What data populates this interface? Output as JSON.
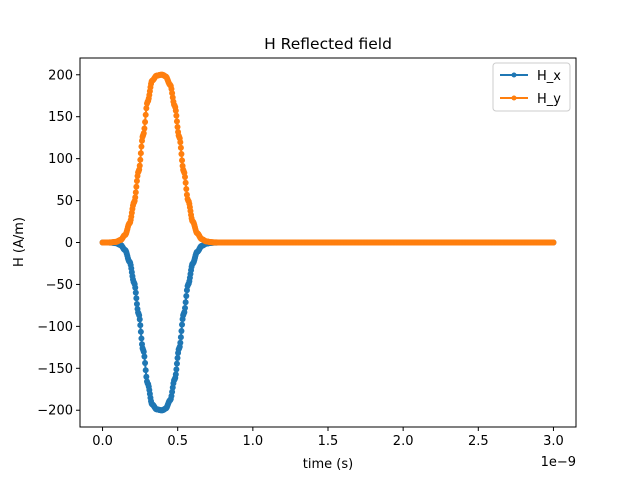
{
  "chart_data": {
    "type": "line",
    "title": "H Reflected field",
    "xlabel": "time (s)",
    "ylabel": "H (A/m)",
    "x_offset_label": "1e−9",
    "xlim": [
      -0.15,
      3.15
    ],
    "ylim": [
      -220,
      220
    ],
    "x_ticks": [
      0.0,
      0.5,
      1.0,
      1.5,
      2.0,
      2.5,
      3.0
    ],
    "x_tick_labels": [
      "0.0",
      "0.5",
      "1.0",
      "1.5",
      "2.0",
      "2.5",
      "3.0"
    ],
    "y_ticks": [
      -200,
      -150,
      -100,
      -50,
      0,
      50,
      100,
      150,
      200
    ],
    "y_tick_labels": [
      "−200",
      "−150",
      "−100",
      "−50",
      "0",
      "50",
      "100",
      "150",
      "200"
    ],
    "grid": false,
    "legend_position": "top-right",
    "series": [
      {
        "name": "H_x",
        "color": "#1f77b4",
        "marker": "circle",
        "x": [
          0.0,
          0.03,
          0.06,
          0.09,
          0.12,
          0.15,
          0.18,
          0.21,
          0.24,
          0.27,
          0.3,
          0.33,
          0.36,
          0.39,
          0.4,
          0.42,
          0.45,
          0.48,
          0.51,
          0.54,
          0.57,
          0.6,
          0.63,
          0.66,
          0.69,
          0.72,
          0.75,
          0.8,
          1.0,
          1.5,
          1.9,
          2.0,
          2.5,
          3.0
        ],
        "values": [
          0,
          0,
          -0.2,
          -0.8,
          -3,
          -9,
          -23,
          -48,
          -85,
          -128,
          -168,
          -193,
          -199,
          -200,
          -200,
          -198,
          -188,
          -163,
          -126,
          -85,
          -50,
          -25,
          -11,
          -4,
          -1.4,
          -0.4,
          -0.1,
          0,
          0,
          0,
          0,
          0,
          0,
          0
        ]
      },
      {
        "name": "H_y",
        "color": "#ff7f0e",
        "marker": "circle",
        "x": [
          0.0,
          0.03,
          0.06,
          0.09,
          0.12,
          0.15,
          0.18,
          0.21,
          0.24,
          0.27,
          0.3,
          0.33,
          0.36,
          0.39,
          0.4,
          0.42,
          0.45,
          0.48,
          0.51,
          0.54,
          0.57,
          0.6,
          0.63,
          0.66,
          0.69,
          0.72,
          0.75,
          0.8,
          1.0,
          1.5,
          1.9,
          2.0,
          2.5,
          3.0
        ],
        "values": [
          0,
          0,
          0.2,
          0.8,
          3,
          9,
          23,
          48,
          85,
          128,
          168,
          193,
          199,
          200,
          200,
          198,
          188,
          163,
          126,
          85,
          50,
          25,
          11,
          4,
          1.4,
          0.4,
          0.1,
          0,
          0,
          0,
          0,
          0,
          0,
          0
        ]
      }
    ]
  }
}
